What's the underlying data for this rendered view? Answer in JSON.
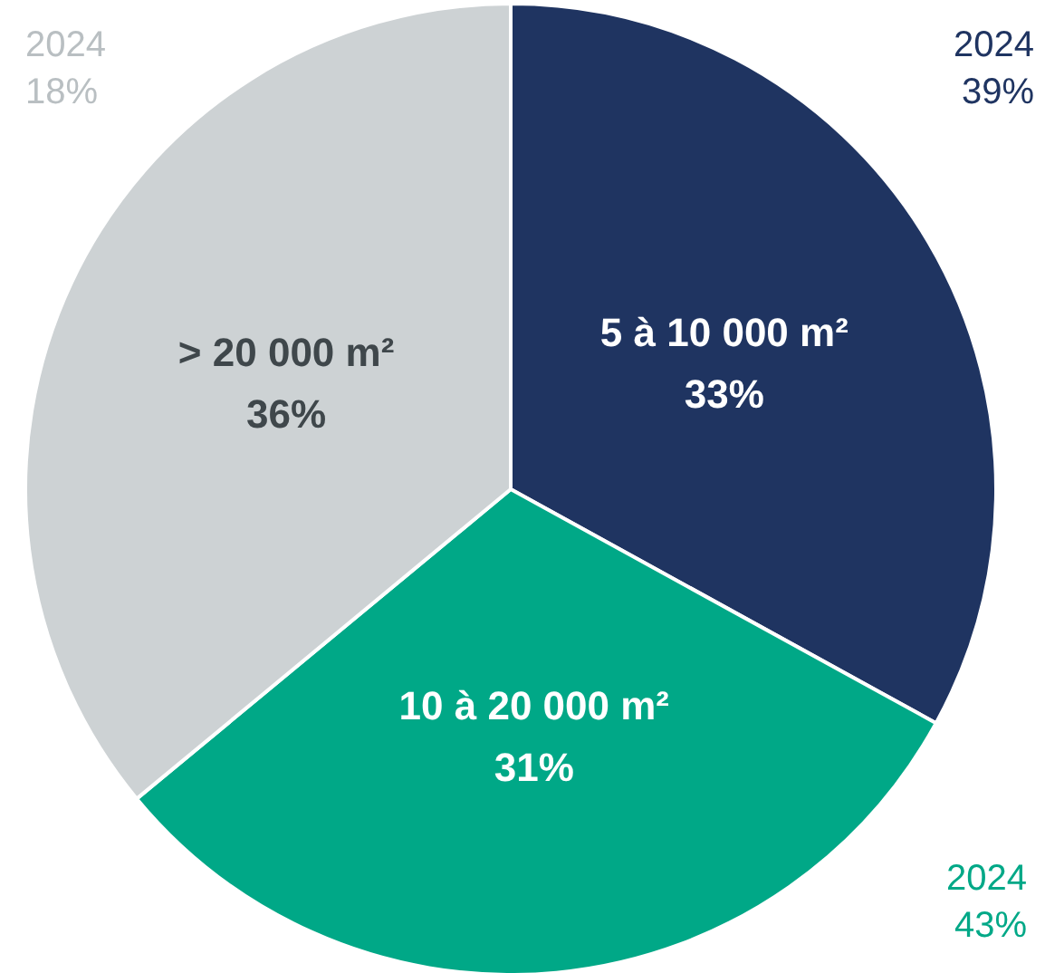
{
  "chart_data": {
    "type": "pie",
    "categories": [
      "5 à 10 000 m²",
      "10 à 20 000 m²",
      "> 20 000 m²"
    ],
    "values": [
      33,
      31,
      36
    ],
    "colors": [
      "#1f3461",
      "#00a887",
      "#cdd2d4"
    ],
    "value_labels": [
      "33%",
      "31%",
      "36%"
    ],
    "annotations": [
      "2024\n39%",
      "2024\n43%",
      "2024\n18%"
    ],
    "legend": false
  }
}
